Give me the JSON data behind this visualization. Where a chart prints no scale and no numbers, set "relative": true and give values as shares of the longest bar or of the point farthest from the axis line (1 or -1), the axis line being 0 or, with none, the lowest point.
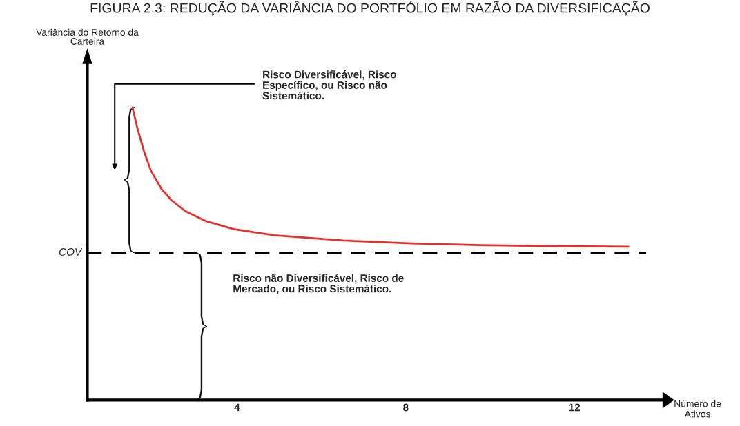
{
  "chart_data": {
    "type": "line",
    "title": "FIGURA 2.3: REDUÇÃO DA VARIÂNCIA DO PORTFÓLIO EM RAZÃO DA DIVERSIFICAÇÃO",
    "xlabel": "Número de\nAtivos",
    "relative": true,
    "xlim": [
      0.45,
      14.1
    ],
    "xticks": [
      4,
      8,
      12
    ],
    "x": [
      1.52,
      1.64,
      1.8,
      1.96,
      2.21,
      2.45,
      2.78,
      3.27,
      3.92,
      4.89,
      6.52,
      8.15,
      9.78,
      11.41,
      13.28
    ],
    "series": [
      {
        "color": "#e8302a",
        "values": [
          1.0,
          0.927,
          0.847,
          0.783,
          0.721,
          0.682,
          0.645,
          0.611,
          0.584,
          0.563,
          0.545,
          0.535,
          0.529,
          0.526,
          0.524
        ]
      }
    ],
    "ref_lines": [
      {
        "axis": "y",
        "value": 0.503,
        "label": "C̅O̅V̅",
        "color": "#000000",
        "line_style": "dashed"
      }
    ],
    "annotations": [
      "Risco Diversificável, Risco\nEspecífico, ou Risco não\nSistemático.",
      "Risco não Diversificável, Risco de\nMercado, ou Risco Sistemático.",
      "Variância do Retorno da\nCarteira"
    ],
    "grid": false,
    "legend": false,
    "marker": "none",
    "line_style": "solid"
  }
}
